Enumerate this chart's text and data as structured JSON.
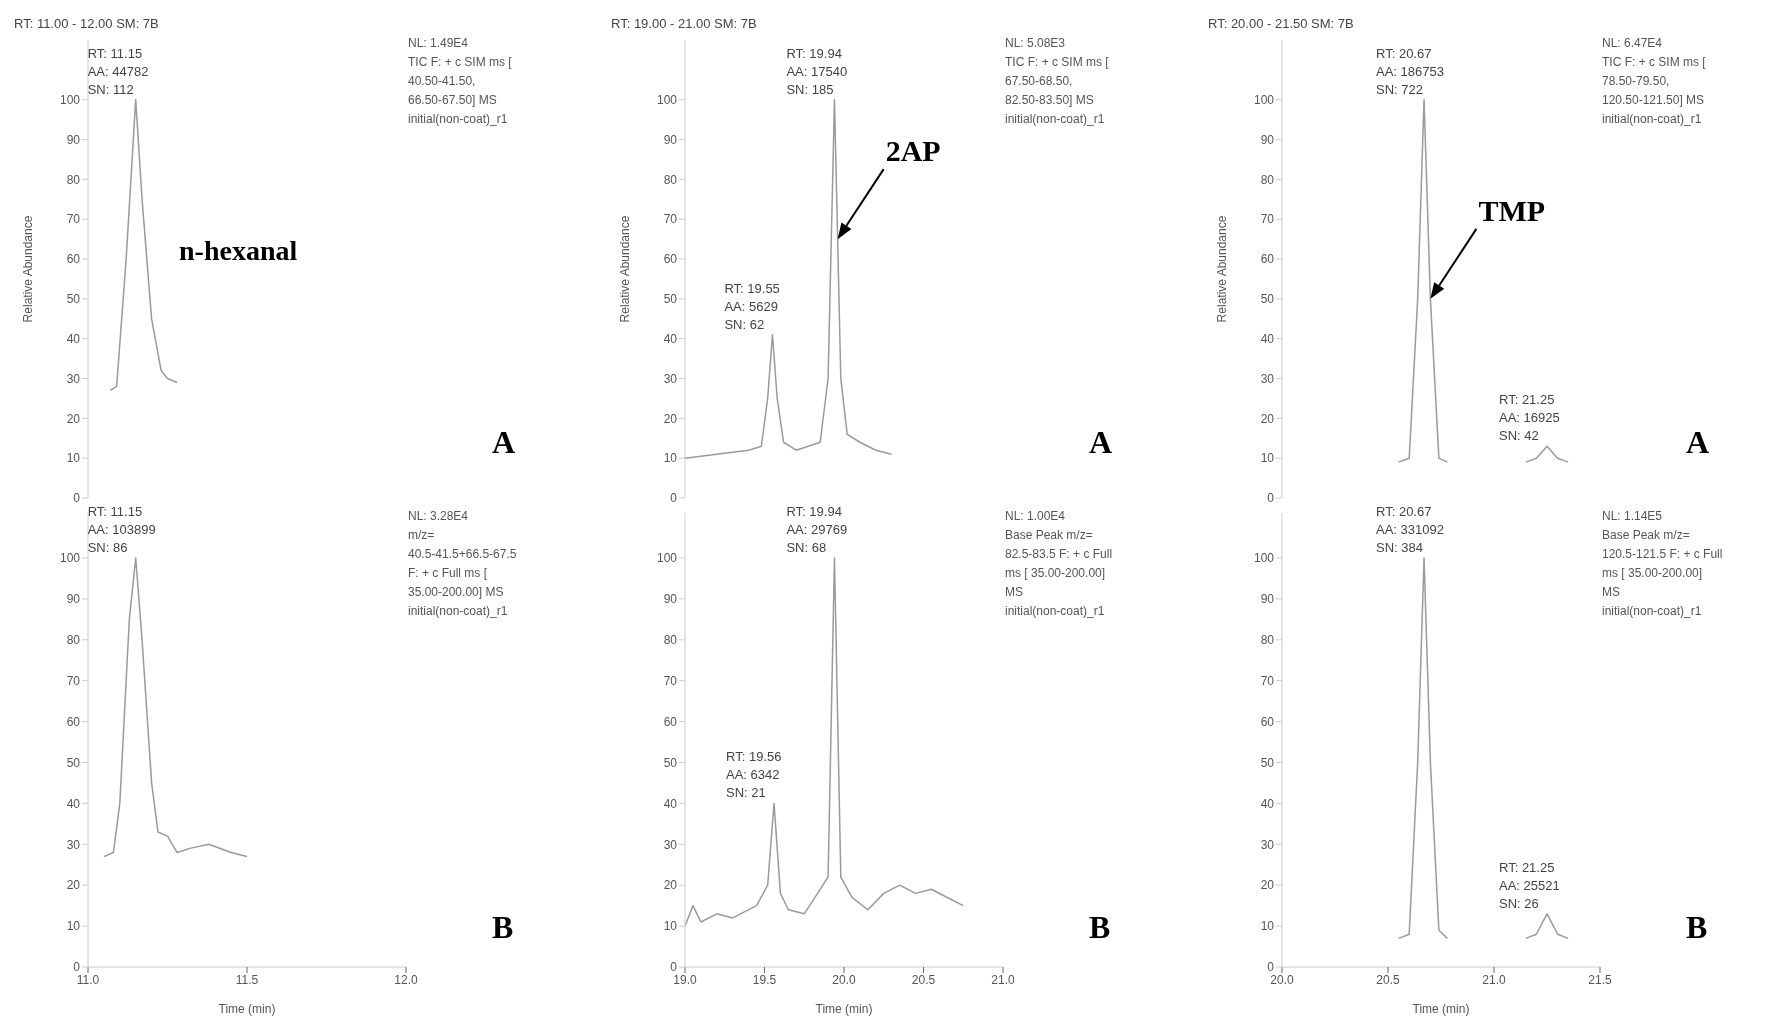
{
  "chart_data": [
    {
      "type": "line",
      "title": "RT: 11.00 - 12.00 SM: 7B",
      "ylabel": "Relative Abundance",
      "tick_labels": "y",
      "xlim": [
        11,
        12
      ],
      "ylim": [
        0,
        115
      ],
      "yticks": [
        0,
        10,
        20,
        30,
        40,
        50,
        60,
        70,
        80,
        90,
        100
      ],
      "color": "#9a9a9a",
      "x": [
        11.07,
        11.09,
        11.12,
        11.15,
        11.17,
        11.2,
        11.23,
        11.25,
        11.28
      ],
      "values": [
        27,
        28,
        60,
        100,
        75,
        45,
        32,
        30,
        29
      ],
      "annotations": [
        {
          "text": "RT: 11.15\nAA: 44782\nSN: 112",
          "x": 11.15,
          "y": 100
        },
        "NL: 1.49E4\nTIC F: + c SIM ms [\n40.50-41.50,\n66.50-67.50] MS\ninitial(non-coat)_r1",
        "A",
        "n-hexanal"
      ]
    },
    {
      "type": "line",
      "title": "RT: 19.00 - 21.00 SM: 7B",
      "ylabel": "Relative Abundance",
      "tick_labels": "y",
      "xlim": [
        19,
        21
      ],
      "ylim": [
        0,
        115
      ],
      "yticks": [
        0,
        10,
        20,
        30,
        40,
        50,
        60,
        70,
        80,
        90,
        100
      ],
      "color": "#9a9a9a",
      "x": [
        19.0,
        19.2,
        19.4,
        19.48,
        19.52,
        19.55,
        19.58,
        19.62,
        19.7,
        19.85,
        19.9,
        19.94,
        19.98,
        20.02,
        20.1,
        20.2,
        20.3
      ],
      "values": [
        10,
        11,
        12,
        13,
        25,
        41,
        25,
        14,
        12,
        14,
        30,
        100,
        30,
        16,
        14,
        12,
        11
      ],
      "annotations": [
        {
          "text": "RT: 19.55\nAA: 5629\nSN: 62",
          "x": 19.55,
          "y": 41
        },
        {
          "text": "RT: 19.94\nAA: 17540\nSN: 185",
          "x": 19.94,
          "y": 100
        },
        "NL: 5.08E3\nTIC F: + c SIM ms [\n67.50-68.50,\n82.50-83.50] MS\ninitial(non-coat)_r1",
        "A",
        {
          "text": "2AP",
          "x": 19.96,
          "y": 65
        }
      ]
    },
    {
      "type": "line",
      "title": "RT: 20.00 - 21.50 SM: 7B",
      "ylabel": "Relative Abundance",
      "tick_labels": "y",
      "xlim": [
        20,
        21.5
      ],
      "ylim": [
        0,
        115
      ],
      "yticks": [
        0,
        10,
        20,
        30,
        40,
        50,
        60,
        70,
        80,
        90,
        100
      ],
      "color": "#9a9a9a",
      "x": [
        20.55,
        20.6,
        20.64,
        20.67,
        20.7,
        20.74,
        20.78,
        21.0,
        21.15,
        21.2,
        21.25,
        21.3,
        21.35
      ],
      "values": [
        9,
        10,
        50,
        100,
        50,
        10,
        9,
        null,
        9,
        10,
        13,
        10,
        9
      ],
      "annotations": [
        {
          "text": "RT: 20.67\nAA: 186753\nSN: 722",
          "x": 20.67,
          "y": 100
        },
        {
          "text": "RT: 21.25\nAA: 16925\nSN: 42",
          "x": 21.25,
          "y": 13
        },
        "NL: 6.47E4\nTIC F: + c SIM ms [\n78.50-79.50,\n120.50-121.50] MS\ninitial(non-coat)_r1",
        "A",
        {
          "text": "TMP",
          "x": 20.7,
          "y": 50
        }
      ]
    },
    {
      "type": "line",
      "xlabel": "Time (min)",
      "xlim": [
        11,
        12
      ],
      "xticks": [
        {
          "value": 11,
          "label": "11.0"
        },
        11.5,
        {
          "value": 12,
          "label": "12.0"
        }
      ],
      "ylim": [
        0,
        111
      ],
      "yticks": [
        0,
        10,
        20,
        30,
        40,
        50,
        60,
        70,
        80,
        90,
        100
      ],
      "color": "#9a9a9a",
      "x": [
        11.05,
        11.08,
        11.1,
        11.13,
        11.15,
        11.17,
        11.2,
        11.22,
        11.25,
        11.28,
        11.32,
        11.38,
        11.45,
        11.5
      ],
      "values": [
        27,
        28,
        40,
        85,
        100,
        80,
        45,
        33,
        32,
        28,
        29,
        30,
        28,
        27
      ],
      "annotations": [
        {
          "text": "RT: 11.15\nAA: 103899\nSN: 86",
          "x": 11.15,
          "y": 100
        },
        "NL: 3.28E4\nm/z=\n40.5-41.5+66.5-67.5\nF: + c Full ms [\n35.00-200.00] MS\ninitial(non-coat)_r1",
        "B"
      ]
    },
    {
      "type": "line",
      "xlabel": "Time (min)",
      "xlim": [
        19,
        21
      ],
      "xticks": [
        {
          "value": 19,
          "label": "19.0"
        },
        19.5,
        {
          "value": 20,
          "label": "20.0"
        },
        20.5,
        {
          "value": 21,
          "label": "21.0"
        }
      ],
      "ylim": [
        0,
        111
      ],
      "yticks": [
        0,
        10,
        20,
        30,
        40,
        50,
        60,
        70,
        80,
        90,
        100
      ],
      "color": "#9a9a9a",
      "x": [
        19.0,
        19.05,
        19.1,
        19.2,
        19.3,
        19.45,
        19.52,
        19.56,
        19.6,
        19.65,
        19.75,
        19.85,
        19.9,
        19.94,
        19.98,
        20.05,
        20.15,
        20.25,
        20.35,
        20.45,
        20.55,
        20.65,
        20.75
      ],
      "values": [
        10,
        15,
        11,
        13,
        12,
        15,
        20,
        40,
        18,
        14,
        13,
        19,
        22,
        100,
        22,
        17,
        14,
        18,
        20,
        18,
        19,
        17,
        15
      ],
      "annotations": [
        {
          "text": "RT: 19.56\nAA: 6342\nSN: 21",
          "x": 19.56,
          "y": 40
        },
        {
          "text": "RT: 19.94\nAA: 29769\nSN: 68",
          "x": 19.94,
          "y": 100
        },
        "NL: 1.00E4\nBase Peak m/z=\n82.5-83.5 F: + c Full\nms [ 35.00-200.00]\nMS\ninitial(non-coat)_r1",
        "B"
      ]
    },
    {
      "type": "line",
      "xlabel": "Time (min)",
      "xlim": [
        20,
        21.5
      ],
      "xticks": [
        {
          "value": 20,
          "label": "20.0"
        },
        20.5,
        {
          "value": 21,
          "label": "21.0"
        },
        21.5
      ],
      "ylim": [
        0,
        111
      ],
      "yticks": [
        0,
        10,
        20,
        30,
        40,
        50,
        60,
        70,
        80,
        90,
        100
      ],
      "color": "#9a9a9a",
      "x": [
        20.55,
        20.6,
        20.64,
        20.67,
        20.7,
        20.74,
        20.78,
        21.0,
        21.15,
        21.2,
        21.25,
        21.3,
        21.35
      ],
      "values": [
        7,
        8,
        50,
        100,
        50,
        9,
        7,
        null,
        7,
        8,
        13,
        8,
        7
      ],
      "annotations": [
        {
          "text": "RT: 20.67\nAA: 331092\nSN: 384",
          "x": 20.67,
          "y": 100
        },
        {
          "text": "RT: 21.25\nAA: 25521\nSN: 26",
          "x": 21.25,
          "y": 13
        },
        "NL: 1.14E5\nBase Peak m/z=\n120.5-121.5 F: + c Full\nms [ 35.00-200.00]\nMS\ninitial(non-coat)_r1",
        "B"
      ]
    }
  ]
}
